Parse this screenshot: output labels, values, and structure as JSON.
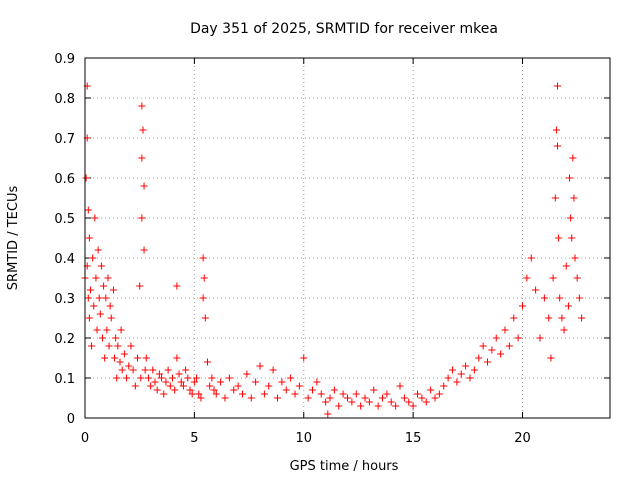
{
  "chart_data": {
    "type": "scatter",
    "title": "Day 351 of 2025, SRMTID for receiver mkea",
    "xlabel": "GPS time / hours",
    "ylabel": "SRMTID / TECUs",
    "xlim": [
      0,
      24
    ],
    "ylim": [
      0,
      0.9
    ],
    "xticks": [
      0,
      5,
      10,
      15,
      20
    ],
    "xtick_labels": [
      "0",
      "5",
      "10",
      "15",
      "20"
    ],
    "yticks": [
      0,
      0.1,
      0.2,
      0.3,
      0.4,
      0.5,
      0.6,
      0.7,
      0.8,
      0.9
    ],
    "ytick_labels": [
      "0",
      "0.1",
      "0.2",
      "0.3",
      "0.4",
      "0.5",
      "0.6",
      "0.7",
      "0.8",
      "0.9"
    ],
    "grid": true,
    "marker": "plus",
    "color": "#ff0000",
    "series": [
      {
        "name": "SRMTID",
        "x": [
          0.0,
          0.05,
          0.1,
          0.1,
          0.1,
          0.15,
          0.15,
          0.2,
          0.2,
          0.25,
          0.3,
          0.35,
          0.4,
          0.45,
          0.5,
          0.55,
          0.6,
          0.65,
          0.7,
          0.75,
          0.8,
          0.85,
          0.9,
          0.95,
          1.0,
          1.05,
          1.1,
          1.15,
          1.2,
          1.3,
          1.35,
          1.4,
          1.45,
          1.5,
          1.6,
          1.65,
          1.7,
          1.8,
          1.9,
          2.0,
          2.1,
          2.2,
          2.3,
          2.4,
          2.5,
          2.55,
          2.6,
          2.6,
          2.6,
          2.65,
          2.7,
          2.7,
          2.75,
          2.8,
          2.9,
          3.0,
          3.1,
          3.2,
          3.3,
          3.4,
          3.5,
          3.6,
          3.7,
          3.8,
          3.9,
          4.0,
          4.1,
          4.2,
          4.2,
          4.3,
          4.4,
          4.5,
          4.6,
          4.7,
          4.8,
          4.9,
          5.0,
          5.1,
          5.2,
          5.3,
          5.4,
          5.4,
          5.45,
          5.5,
          5.6,
          5.7,
          5.8,
          5.9,
          6.0,
          6.2,
          6.4,
          6.6,
          6.8,
          7.0,
          7.2,
          7.4,
          7.6,
          7.8,
          8.0,
          8.2,
          8.4,
          8.6,
          8.8,
          9.0,
          9.2,
          9.4,
          9.6,
          9.8,
          10.0,
          10.2,
          10.4,
          10.6,
          10.8,
          11.0,
          11.1,
          11.2,
          11.4,
          11.6,
          11.8,
          12.0,
          12.2,
          12.4,
          12.6,
          12.8,
          13.0,
          13.2,
          13.4,
          13.6,
          13.8,
          14.0,
          14.2,
          14.4,
          14.6,
          14.8,
          15.0,
          15.2,
          15.4,
          15.6,
          15.8,
          16.0,
          16.2,
          16.4,
          16.6,
          16.8,
          17.0,
          17.2,
          17.4,
          17.6,
          17.8,
          18.0,
          18.2,
          18.4,
          18.6,
          18.8,
          19.0,
          19.2,
          19.4,
          19.6,
          19.8,
          20.0,
          20.2,
          20.4,
          20.6,
          20.8,
          21.0,
          21.2,
          21.3,
          21.4,
          21.5,
          21.55,
          21.6,
          21.6,
          21.65,
          21.7,
          21.8,
          21.9,
          22.0,
          22.1,
          22.15,
          22.2,
          22.25,
          22.3,
          22.35,
          22.4,
          22.5,
          22.6,
          22.7
        ],
        "y": [
          0.35,
          0.6,
          0.83,
          0.7,
          0.38,
          0.52,
          0.3,
          0.45,
          0.25,
          0.32,
          0.18,
          0.4,
          0.28,
          0.5,
          0.35,
          0.22,
          0.42,
          0.3,
          0.26,
          0.38,
          0.2,
          0.33,
          0.15,
          0.3,
          0.22,
          0.35,
          0.18,
          0.28,
          0.25,
          0.32,
          0.15,
          0.2,
          0.1,
          0.18,
          0.14,
          0.22,
          0.12,
          0.16,
          0.1,
          0.13,
          0.18,
          0.12,
          0.08,
          0.15,
          0.33,
          0.1,
          0.78,
          0.65,
          0.5,
          0.72,
          0.58,
          0.42,
          0.12,
          0.15,
          0.1,
          0.08,
          0.12,
          0.09,
          0.07,
          0.11,
          0.1,
          0.06,
          0.09,
          0.12,
          0.08,
          0.1,
          0.07,
          0.15,
          0.33,
          0.11,
          0.09,
          0.08,
          0.12,
          0.1,
          0.07,
          0.06,
          0.09,
          0.1,
          0.06,
          0.05,
          0.3,
          0.4,
          0.35,
          0.25,
          0.14,
          0.08,
          0.1,
          0.07,
          0.06,
          0.09,
          0.05,
          0.1,
          0.07,
          0.08,
          0.06,
          0.11,
          0.05,
          0.09,
          0.13,
          0.06,
          0.08,
          0.12,
          0.05,
          0.09,
          0.07,
          0.1,
          0.06,
          0.08,
          0.15,
          0.05,
          0.07,
          0.09,
          0.06,
          0.04,
          0.01,
          0.05,
          0.07,
          0.03,
          0.06,
          0.05,
          0.04,
          0.06,
          0.03,
          0.05,
          0.04,
          0.07,
          0.03,
          0.05,
          0.06,
          0.04,
          0.03,
          0.08,
          0.05,
          0.04,
          0.03,
          0.06,
          0.05,
          0.04,
          0.07,
          0.05,
          0.06,
          0.08,
          0.1,
          0.12,
          0.09,
          0.11,
          0.13,
          0.1,
          0.12,
          0.15,
          0.18,
          0.14,
          0.17,
          0.2,
          0.16,
          0.22,
          0.18,
          0.25,
          0.2,
          0.28,
          0.35,
          0.4,
          0.32,
          0.2,
          0.3,
          0.25,
          0.15,
          0.35,
          0.55,
          0.72,
          0.83,
          0.68,
          0.45,
          0.3,
          0.25,
          0.22,
          0.38,
          0.28,
          0.6,
          0.5,
          0.45,
          0.65,
          0.55,
          0.4,
          0.35,
          0.3,
          0.25
        ]
      }
    ]
  }
}
